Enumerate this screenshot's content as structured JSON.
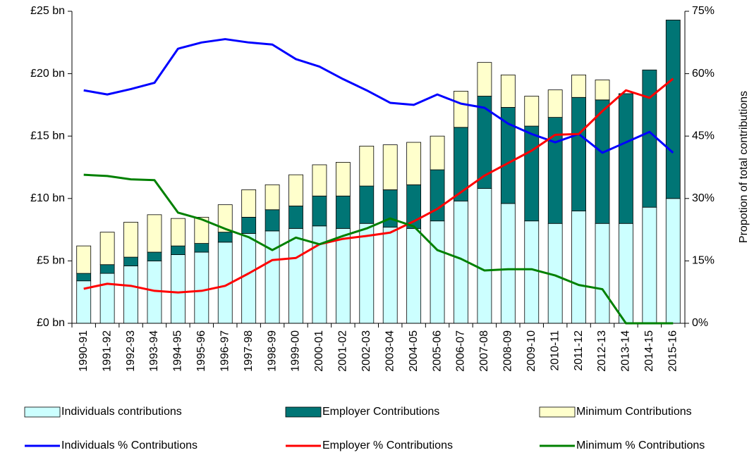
{
  "chart_data": {
    "type": "bar",
    "y2label": "Propotion of total contributions",
    "categories": [
      "1990-91",
      "1991-92",
      "1992-93",
      "1993-94",
      "1994-95",
      "1995-96",
      "1996-97",
      "1997-98",
      "1998-99",
      "1999-00",
      "2000-01",
      "2001-02",
      "2002-03",
      "2003-04",
      "2004-05",
      "2005-06",
      "2006-07",
      "2007-08",
      "2008-09",
      "2009-10",
      "2010-11",
      "2011-12",
      "2012-13",
      "2013-14",
      "2014-15",
      "2015-16"
    ],
    "series": [
      {
        "name": "Individuals contributions",
        "type": "bar",
        "color": "#ccffff",
        "values": [
          3.4,
          4.0,
          4.6,
          5.0,
          5.5,
          5.7,
          6.5,
          7.2,
          7.4,
          7.6,
          7.8,
          7.6,
          8.0,
          7.7,
          7.6,
          8.2,
          9.8,
          10.8,
          9.6,
          8.2,
          8.0,
          9.0,
          8.0,
          8.0,
          9.3,
          10.0
        ]
      },
      {
        "name": "Employer Contributions",
        "type": "bar",
        "color": "#007575",
        "values": [
          0.6,
          0.7,
          0.7,
          0.7,
          0.7,
          0.7,
          0.8,
          1.3,
          1.7,
          1.8,
          2.4,
          2.6,
          3.0,
          3.0,
          3.5,
          4.1,
          5.9,
          7.4,
          7.7,
          7.6,
          8.5,
          9.1,
          9.9,
          10.4,
          11.0,
          14.3
        ]
      },
      {
        "name": "Minimum Contributions",
        "type": "bar",
        "color": "#ffffcc",
        "values": [
          2.2,
          2.6,
          2.8,
          3.0,
          2.2,
          2.1,
          2.2,
          2.2,
          2.0,
          2.5,
          2.5,
          2.7,
          3.2,
          3.6,
          3.4,
          2.7,
          2.9,
          2.7,
          2.6,
          2.4,
          2.2,
          1.8,
          1.6,
          0,
          0,
          0
        ]
      },
      {
        "name": "Individuals % Contributions",
        "type": "line",
        "axis": "y2",
        "color": "#0000ff",
        "values": [
          56,
          55,
          56.3,
          57.8,
          66,
          67.5,
          68.3,
          67.5,
          67,
          63.5,
          61.7,
          58.7,
          56,
          53,
          52.5,
          55,
          52.8,
          51.8,
          48,
          45.5,
          43.5,
          45.5,
          41,
          43.5,
          46,
          41
        ]
      },
      {
        "name": "Employer % Contributions",
        "type": "line",
        "axis": "y2",
        "color": "#ff0000",
        "values": [
          8.3,
          9.5,
          9,
          7.8,
          7.4,
          7.8,
          9,
          12,
          15.2,
          15.7,
          19,
          20.3,
          21,
          21.8,
          24.5,
          27.5,
          31.5,
          35.5,
          38.5,
          41.5,
          45.3,
          45.5,
          51,
          56,
          54.2,
          58.8
        ]
      },
      {
        "name": "Minimum % Contributions",
        "type": "line",
        "axis": "y2",
        "color": "#008000",
        "values": [
          35.7,
          35.4,
          34.6,
          34.4,
          26.6,
          25,
          22.7,
          20.7,
          17.6,
          20.6,
          19,
          21,
          22.8,
          25.2,
          23.3,
          17.6,
          15.5,
          12.7,
          13,
          13,
          11.5,
          9.2,
          8.2,
          0,
          0,
          0
        ]
      }
    ],
    "ylim": [
      0,
      25
    ],
    "yticks": [
      {
        "value": 0,
        "label": "£0 bn"
      },
      {
        "value": 5,
        "label": "£5 bn"
      },
      {
        "value": 10,
        "label": "£10 bn"
      },
      {
        "value": 15,
        "label": "£15 bn"
      },
      {
        "value": 20,
        "label": "£20 bn"
      },
      {
        "value": 25,
        "label": "£25 bn"
      }
    ],
    "y2lim": [
      0,
      75
    ],
    "y2ticks": [
      {
        "value": 0,
        "label": "0%"
      },
      {
        "value": 15,
        "label": "15%"
      },
      {
        "value": 30,
        "label": "30%"
      },
      {
        "value": 45,
        "label": "45%"
      },
      {
        "value": 60,
        "label": "60%"
      },
      {
        "value": 75,
        "label": "75%"
      }
    ],
    "legend": "bottom"
  }
}
